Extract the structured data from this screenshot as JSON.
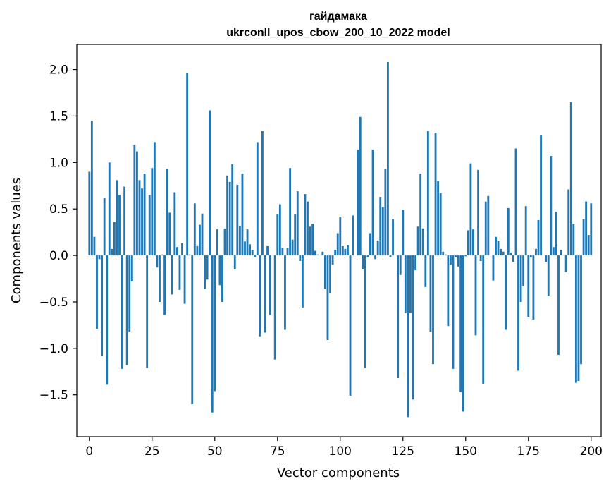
{
  "chart_data": {
    "type": "bar",
    "title": "гайдамака",
    "subtitle": "ukrconll_upos_cbow_200_10_2022 model",
    "xlabel": "Vector components",
    "ylabel": "Components values",
    "xlim": [
      -5,
      204
    ],
    "ylim": [
      -1.95,
      2.27
    ],
    "xticks": [
      0,
      25,
      50,
      75,
      100,
      125,
      150,
      175,
      200
    ],
    "yticks": [
      -1.5,
      -1.0,
      -0.5,
      0.0,
      0.5,
      1.0,
      1.5,
      2.0
    ],
    "ytick_labels": [
      "−1.5",
      "−1.0",
      "−0.5",
      "0.0",
      "0.5",
      "1.0",
      "1.5",
      "2.0"
    ],
    "bar_color": "#1f77b4",
    "grid": false,
    "values": [
      0.9,
      1.45,
      0.2,
      -0.79,
      -0.04,
      -1.08,
      0.62,
      -1.39,
      1.0,
      0.07,
      0.36,
      0.81,
      0.65,
      -1.22,
      0.74,
      -1.18,
      -0.82,
      -0.28,
      1.19,
      1.12,
      0.81,
      0.72,
      0.88,
      -1.21,
      0.65,
      0.94,
      1.22,
      -0.13,
      -0.5,
      0.01,
      -0.64,
      0.93,
      0.46,
      -0.42,
      0.68,
      0.09,
      -0.37,
      0.13,
      -0.52,
      1.96,
      0.01,
      -1.6,
      0.56,
      0.1,
      0.33,
      0.45,
      -0.36,
      -0.26,
      1.56,
      -1.69,
      -1.46,
      0.28,
      -0.32,
      -0.5,
      0.29,
      0.86,
      0.79,
      0.98,
      -0.15,
      0.76,
      0.32,
      0.88,
      0.15,
      0.28,
      0.12,
      0.06,
      -0.02,
      1.22,
      -0.87,
      1.34,
      -0.83,
      0.1,
      -0.64,
      0.0,
      -1.12,
      0.44,
      0.55,
      0.08,
      -0.8,
      0.08,
      0.94,
      0.17,
      0.44,
      0.69,
      -0.06,
      -0.56,
      0.66,
      0.58,
      0.31,
      0.34,
      0.05,
      0.01,
      0.0,
      0.04,
      -0.36,
      -0.91,
      -0.41,
      -0.1,
      0.06,
      0.24,
      0.41,
      0.1,
      0.07,
      0.11,
      -1.51,
      0.43,
      0.0,
      1.14,
      1.49,
      -0.15,
      -1.21,
      -0.02,
      0.24,
      1.14,
      -0.04,
      0.16,
      0.63,
      0.52,
      0.93,
      2.08,
      -0.02,
      0.39,
      0.0,
      -1.32,
      -0.21,
      0.49,
      -0.62,
      -1.74,
      -0.62,
      -1.55,
      -0.16,
      0.31,
      0.88,
      0.29,
      -0.34,
      1.34,
      -0.82,
      -1.17,
      1.32,
      0.8,
      0.67,
      0.04,
      0.01,
      -0.76,
      -0.1,
      -1.22,
      -0.02,
      -0.12,
      -1.47,
      -1.68,
      -0.01,
      0.27,
      0.99,
      0.28,
      -0.86,
      0.92,
      -0.06,
      -1.38,
      0.58,
      0.64,
      0.0,
      -0.27,
      0.2,
      0.16,
      0.07,
      0.04,
      -0.8,
      0.51,
      0.03,
      -0.07,
      1.15,
      -1.24,
      -0.5,
      -0.33,
      0.53,
      -0.66,
      -0.02,
      -0.69,
      0.07,
      0.38,
      1.29,
      0.0,
      -0.07,
      -0.44,
      1.07,
      0.09,
      0.47,
      -1.07,
      0.06,
      0.0,
      -0.18,
      0.71,
      1.65,
      0.34,
      -1.37,
      -1.35,
      -1.17,
      0.39,
      0.58,
      0.22,
      0.56
    ]
  }
}
